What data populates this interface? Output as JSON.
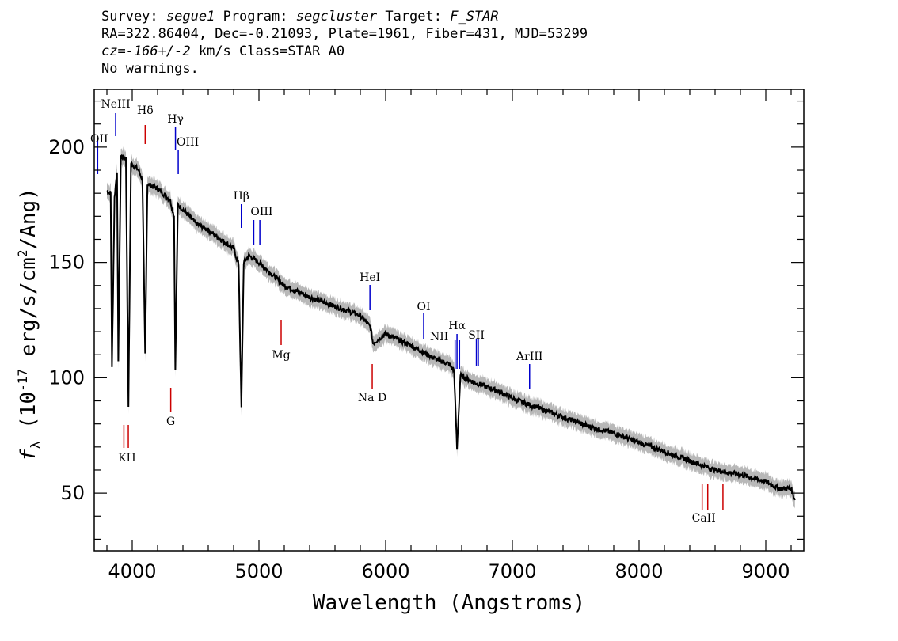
{
  "header": {
    "line1_survey_label": "Survey:",
    "line1_survey_value": "segue1",
    "line1_program_label": "Program:",
    "line1_program_value": "segcluster",
    "line1_target_label": "Target:",
    "line1_target_value": "F_STAR",
    "line2": "RA=322.86404, Dec=-0.21093, Plate=1961, Fiber=431, MJD=53299",
    "line3_cz": "cz=-166+/-2",
    "line3_rest": "km/s Class=STAR A0",
    "line4": "No warnings."
  },
  "chart_data": {
    "type": "line",
    "xlabel": "Wavelength (Angstroms)",
    "ylabel": "f_λ (10^-17 erg/s/cm^2/Ang)",
    "xlim": [
      3700,
      9300
    ],
    "ylim": [
      25,
      225
    ],
    "x_ticks": [
      4000,
      5000,
      6000,
      7000,
      8000,
      9000
    ],
    "y_ticks": [
      50,
      100,
      150,
      200
    ],
    "colors": {
      "spectrum": "#000000",
      "error_band": "#b8b8b8",
      "emission": "#0000cc",
      "absorption": "#cc0000"
    },
    "spectrum": {
      "x": [
        3800,
        3830,
        3840,
        3860,
        3880,
        3890,
        3910,
        3950,
        3970,
        3990,
        4050,
        4080,
        4102,
        4120,
        4200,
        4300,
        4330,
        4340,
        4360,
        4400,
        4500,
        4600,
        4700,
        4800,
        4840,
        4861,
        4880,
        4920,
        5000,
        5100,
        5200,
        5400,
        5600,
        5800,
        5880,
        5900,
        6000,
        6200,
        6400,
        6500,
        6540,
        6563,
        6590,
        6700,
        6800,
        6900,
        7000,
        7100,
        7200,
        7400,
        7600,
        7800,
        8000,
        8200,
        8400,
        8600,
        8800,
        9000,
        9100,
        9200,
        9230
      ],
      "y": [
        181,
        180,
        104,
        178,
        190,
        108,
        196,
        195,
        88,
        193,
        190,
        186,
        110,
        184,
        182,
        177,
        170,
        103,
        175,
        173,
        167,
        164,
        160,
        156,
        149,
        87,
        150,
        153,
        150,
        145,
        140,
        135,
        131,
        127,
        122,
        115,
        119,
        114,
        108,
        106,
        103,
        69,
        101,
        98,
        96,
        94,
        91,
        89,
        87,
        83,
        79,
        76,
        72,
        68,
        64,
        60,
        58,
        55,
        52,
        52,
        47
      ],
      "error_band": 3
    },
    "line_markers": [
      {
        "label": "OII",
        "wavelength": 3727,
        "kind": "emission"
      },
      {
        "label": "NeIII",
        "wavelength": 3869,
        "kind": "emission"
      },
      {
        "label": "Hδ",
        "wavelength": 4102,
        "kind": "absorption"
      },
      {
        "label": "Hγ",
        "wavelength": 4341,
        "kind": "emission"
      },
      {
        "label": "OIII",
        "wavelength": 4363,
        "kind": "emission"
      },
      {
        "label": "Hβ",
        "wavelength": 4861,
        "kind": "emission"
      },
      {
        "label": "OIII",
        "wavelength": 4959,
        "kind": "emission"
      },
      {
        "label": "OIII",
        "wavelength": 5007,
        "kind": "emission"
      },
      {
        "label": "HeI",
        "wavelength": 5876,
        "kind": "emission"
      },
      {
        "label": "OI",
        "wavelength": 6300,
        "kind": "emission"
      },
      {
        "label": "NII",
        "wavelength": 6548,
        "kind": "emission"
      },
      {
        "label": "Hα",
        "wavelength": 6563,
        "kind": "emission"
      },
      {
        "label": "NII",
        "wavelength": 6583,
        "kind": "emission"
      },
      {
        "label": "SII",
        "wavelength": 6716,
        "kind": "emission"
      },
      {
        "label": "SII",
        "wavelength": 6731,
        "kind": "emission"
      },
      {
        "label": "ArIII",
        "wavelength": 7136,
        "kind": "emission"
      },
      {
        "label": "K",
        "wavelength": 3934,
        "kind": "absorption"
      },
      {
        "label": "H",
        "wavelength": 3969,
        "kind": "absorption"
      },
      {
        "label": "G",
        "wavelength": 4304,
        "kind": "absorption"
      },
      {
        "label": "Mg",
        "wavelength": 5175,
        "kind": "absorption"
      },
      {
        "label": "Na D",
        "wavelength": 5894,
        "kind": "absorption"
      },
      {
        "label": "CaII",
        "wavelength": 8498,
        "kind": "absorption"
      },
      {
        "label": "CaII",
        "wavelength": 8542,
        "kind": "absorption"
      },
      {
        "label": "CaII",
        "wavelength": 8662,
        "kind": "absorption"
      }
    ]
  }
}
